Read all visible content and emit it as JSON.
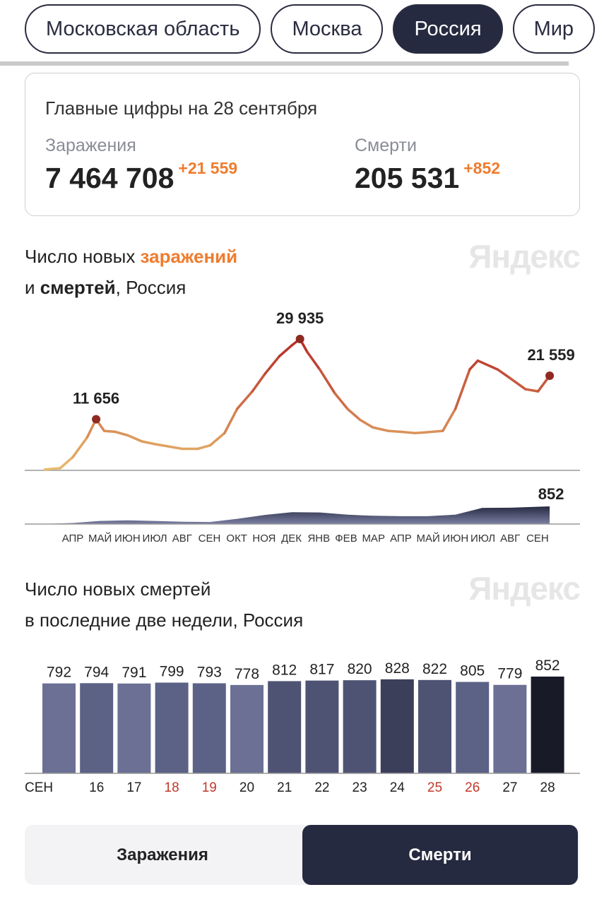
{
  "region_tabs": [
    {
      "label": "Московская область",
      "active": false
    },
    {
      "label": "Москва",
      "active": false
    },
    {
      "label": "Россия",
      "active": true
    },
    {
      "label": "Мир",
      "active": false
    }
  ],
  "summary": {
    "title": "Главные цифры на 28 сентября",
    "infections": {
      "label": "Заражения",
      "value": "7 464 708",
      "delta": "+21 559"
    },
    "deaths": {
      "label": "Смерти",
      "value": "205 531",
      "delta": "+852"
    }
  },
  "logo": "Яндекс",
  "chart1": {
    "title_prefix": "Число новых ",
    "title_accent": "заражений",
    "title_line2_prefix": "и ",
    "title_line2_bold": "смертей",
    "title_line2_suffix": ", Россия"
  },
  "chart2": {
    "title_line1": "Число новых смертей",
    "title_line2": "в последние две недели, Россия"
  },
  "toggle": {
    "infections": "Заражения",
    "deaths": "Смерти",
    "active": "deaths"
  },
  "colors": {
    "accent": "#ef7c2f",
    "dark": "#262a40",
    "line_low": "#e9bd6e",
    "line_high": "#b8312a",
    "weekend": "#c0392b"
  },
  "chart_data": [
    {
      "type": "line",
      "series_label": "new infections",
      "x": [
        "2020-03-15",
        "2020-04-01",
        "2020-04-15",
        "2020-05-01",
        "2020-05-11",
        "2020-05-20",
        "2020-06-01",
        "2020-06-15",
        "2020-07-01",
        "2020-07-15",
        "2020-08-01",
        "2020-08-15",
        "2020-09-01",
        "2020-09-15",
        "2020-10-01",
        "2020-10-15",
        "2020-11-01",
        "2020-11-15",
        "2020-12-01",
        "2020-12-15",
        "2020-12-24",
        "2021-01-01",
        "2021-01-15",
        "2021-02-01",
        "2021-02-15",
        "2021-03-01",
        "2021-03-15",
        "2021-04-01",
        "2021-04-15",
        "2021-05-01",
        "2021-05-15",
        "2021-06-01",
        "2021-06-15",
        "2021-07-01",
        "2021-07-10",
        "2021-08-01",
        "2021-08-15",
        "2021-09-01",
        "2021-09-15",
        "2021-09-28"
      ],
      "values": [
        200,
        500,
        3000,
        7500,
        11656,
        9000,
        8800,
        8000,
        6600,
        6000,
        5400,
        4900,
        4900,
        5700,
        8500,
        14000,
        18000,
        22000,
        26000,
        28500,
        29935,
        27000,
        23000,
        17500,
        14000,
        11500,
        9800,
        9000,
        8800,
        8500,
        8700,
        9000,
        14000,
        23000,
        25000,
        23000,
        21000,
        18500,
        18000,
        21559
      ],
      "annotations": [
        {
          "x": "2020-05-11",
          "label": "11 656"
        },
        {
          "x": "2020-12-24",
          "label": "29 935"
        },
        {
          "x": "2021-09-28",
          "label": "21 559"
        }
      ]
    },
    {
      "type": "area",
      "series_label": "new deaths",
      "x": [
        "2020-03-15",
        "2020-04-15",
        "2020-05-15",
        "2020-06-15",
        "2020-07-15",
        "2020-08-15",
        "2020-09-15",
        "2020-10-15",
        "2020-11-15",
        "2020-12-15",
        "2021-01-15",
        "2021-02-15",
        "2021-03-15",
        "2021-04-15",
        "2021-05-15",
        "2021-06-15",
        "2021-07-15",
        "2021-08-15",
        "2021-09-28"
      ],
      "values": [
        10,
        50,
        150,
        180,
        150,
        110,
        100,
        250,
        440,
        570,
        560,
        450,
        400,
        380,
        380,
        450,
        780,
        790,
        852
      ],
      "annotations": [
        {
          "x": "2021-09-28",
          "label": "852"
        }
      ],
      "x_tick_labels": [
        "АПР",
        "МАЙ",
        "ИЮН",
        "ИЮЛ",
        "АВГ",
        "СЕН",
        "ОКТ",
        "НОЯ",
        "ДЕК",
        "ЯНВ",
        "ФЕВ",
        "МАР",
        "АПР",
        "МАЙ",
        "ИЮН",
        "ИЮЛ",
        "АВГ",
        "СЕН"
      ]
    },
    {
      "type": "bar",
      "categories": [
        "СЕН",
        "16",
        "17",
        "18",
        "19",
        "20",
        "21",
        "22",
        "23",
        "24",
        "25",
        "26",
        "27",
        "28"
      ],
      "weekend": [
        false,
        false,
        false,
        true,
        true,
        false,
        false,
        false,
        false,
        false,
        true,
        true,
        false,
        false
      ],
      "values": [
        792,
        794,
        791,
        799,
        793,
        778,
        812,
        817,
        820,
        828,
        822,
        805,
        779,
        852
      ],
      "bar_colors": [
        "#6b7094",
        "#5c6286",
        "#6b7094",
        "#5c6286",
        "#5c6286",
        "#6b7094",
        "#4f5373",
        "#4f5373",
        "#4f5373",
        "#3b3f5a",
        "#4f5373",
        "#5c6286",
        "#6b7094",
        "#181a28"
      ]
    }
  ]
}
